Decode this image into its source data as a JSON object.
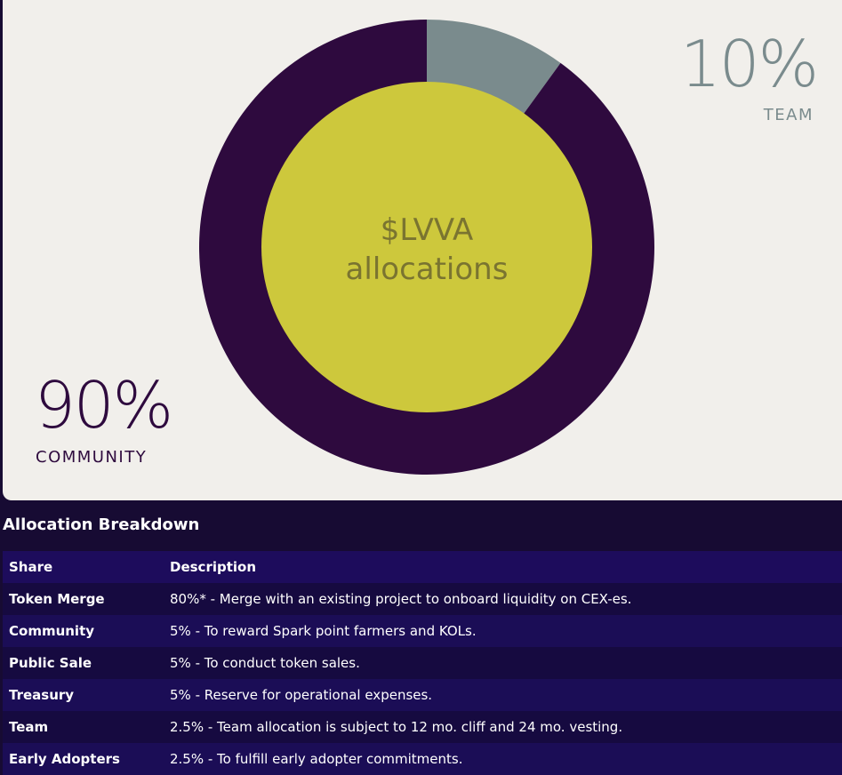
{
  "chart_data": {
    "type": "pie",
    "center_title_line1": "$LVVA",
    "center_title_line2": "allocations",
    "slices": [
      {
        "label": "TEAM",
        "value": 10,
        "display": "10%",
        "color": "#7a8b8d"
      },
      {
        "label": "COMMUNITY",
        "value": 90,
        "display": "90%",
        "color": "#2e0a3e"
      }
    ],
    "inner_color": "#cdc83c",
    "inner_text_color": "#7a7430"
  },
  "table": {
    "title": "Allocation Breakdown",
    "headers": [
      "Share",
      "Description"
    ],
    "rows": [
      {
        "share": "Token Merge",
        "description": "80%* - Merge with an existing project to onboard liquidity on CEX-es."
      },
      {
        "share": "Community",
        "description": "5% - To reward Spark point farmers and KOLs."
      },
      {
        "share": "Public Sale",
        "description": "5% - To conduct token sales."
      },
      {
        "share": "Treasury",
        "description": "5% - Reserve for operational expenses."
      },
      {
        "share": "Team",
        "description": "2.5% - Team allocation is subject to 12 mo. cliff and 24 mo. vesting."
      },
      {
        "share": "Early Adopters",
        "description": "2.5% - To fulfill early adopter commitments."
      }
    ]
  }
}
